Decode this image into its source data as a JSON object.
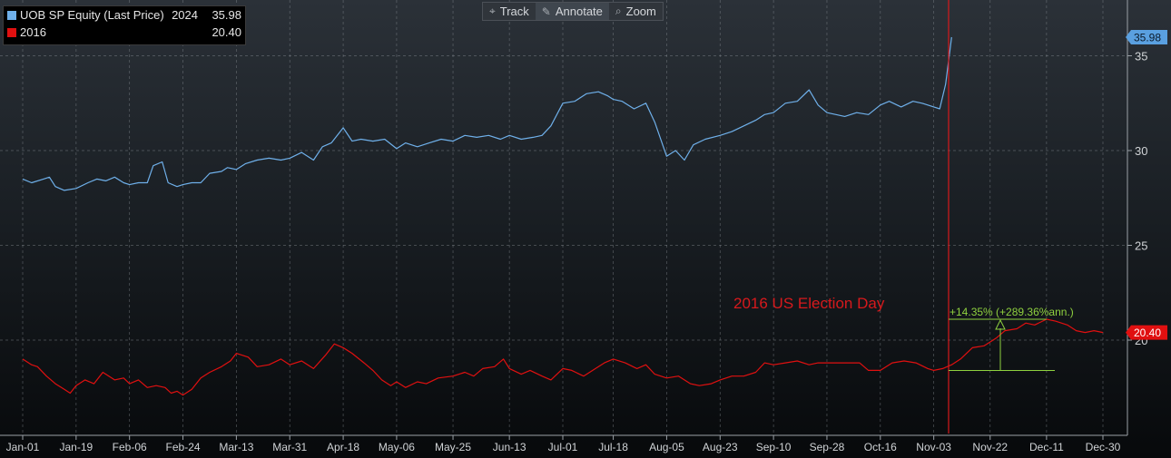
{
  "toolbar": {
    "track_label": "Track",
    "annotate_label": "Annotate",
    "zoom_label": "Zoom",
    "track_icon": "crosshair-icon",
    "annotate_icon": "pencil-icon",
    "zoom_icon": "magnifier-icon"
  },
  "legend": {
    "items": [
      {
        "name": "UOB SP Equity (Last Price)",
        "year": "2024",
        "value": "35.98",
        "color": "#6fb0ea"
      },
      {
        "name": "2016",
        "year": "",
        "value": "20.40",
        "color": "#e01010"
      }
    ]
  },
  "annotations": {
    "election_label": "2016 US Election Day",
    "change_label": "+14.35% (+289.36%ann.)",
    "election_color": "#d7191c",
    "measure_color": "#8fd13f"
  },
  "chart_data": {
    "type": "line",
    "title": "",
    "xlabel": "",
    "ylabel": "",
    "x_ticks": [
      "Jan-01",
      "Jan-19",
      "Feb-06",
      "Feb-24",
      "Mar-13",
      "Mar-31",
      "Apr-18",
      "May-06",
      "May-25",
      "Jun-13",
      "Jul-01",
      "Jul-18",
      "Aug-05",
      "Aug-23",
      "Sep-10",
      "Sep-28",
      "Oct-16",
      "Nov-03",
      "Nov-22",
      "Dec-11",
      "Dec-30"
    ],
    "y_ticks": [
      20,
      25,
      30,
      35
    ],
    "ylim": [
      15,
      38
    ],
    "grid": true,
    "y_axis_side": "right",
    "last_value_tags": [
      "35.98",
      "20.40"
    ],
    "series": [
      {
        "name": "UOB SP Equity (Last Price) 2024",
        "color": "#6fb0ea",
        "points": [
          [
            "Jan-01",
            28.5
          ],
          [
            "Jan-04",
            28.3
          ],
          [
            "Jan-08",
            28.5
          ],
          [
            "Jan-10",
            28.6
          ],
          [
            "Jan-12",
            28.1
          ],
          [
            "Jan-15",
            27.9
          ],
          [
            "Jan-19",
            28.0
          ],
          [
            "Jan-23",
            28.3
          ],
          [
            "Jan-26",
            28.5
          ],
          [
            "Jan-29",
            28.4
          ],
          [
            "Feb-01",
            28.6
          ],
          [
            "Feb-04",
            28.3
          ],
          [
            "Feb-06",
            28.2
          ],
          [
            "Feb-09",
            28.3
          ],
          [
            "Feb-12",
            28.3
          ],
          [
            "Feb-14",
            29.2
          ],
          [
            "Feb-17",
            29.4
          ],
          [
            "Feb-19",
            28.3
          ],
          [
            "Feb-22",
            28.1
          ],
          [
            "Feb-24",
            28.2
          ],
          [
            "Feb-27",
            28.3
          ],
          [
            "Mar-01",
            28.3
          ],
          [
            "Mar-04",
            28.8
          ],
          [
            "Mar-08",
            28.9
          ],
          [
            "Mar-10",
            29.1
          ],
          [
            "Mar-13",
            29.0
          ],
          [
            "Mar-16",
            29.3
          ],
          [
            "Mar-20",
            29.5
          ],
          [
            "Mar-24",
            29.6
          ],
          [
            "Mar-28",
            29.5
          ],
          [
            "Mar-31",
            29.6
          ],
          [
            "Apr-04",
            29.9
          ],
          [
            "Apr-08",
            29.5
          ],
          [
            "Apr-11",
            30.2
          ],
          [
            "Apr-14",
            30.4
          ],
          [
            "Apr-18",
            31.2
          ],
          [
            "Apr-21",
            30.5
          ],
          [
            "Apr-24",
            30.6
          ],
          [
            "Apr-28",
            30.5
          ],
          [
            "May-02",
            30.6
          ],
          [
            "May-06",
            30.1
          ],
          [
            "May-09",
            30.4
          ],
          [
            "May-13",
            30.2
          ],
          [
            "May-17",
            30.4
          ],
          [
            "May-21",
            30.6
          ],
          [
            "May-25",
            30.5
          ],
          [
            "May-29",
            30.8
          ],
          [
            "Jun-02",
            30.7
          ],
          [
            "Jun-06",
            30.8
          ],
          [
            "Jun-10",
            30.6
          ],
          [
            "Jun-13",
            30.8
          ],
          [
            "Jun-17",
            30.6
          ],
          [
            "Jun-21",
            30.7
          ],
          [
            "Jun-24",
            30.8
          ],
          [
            "Jun-27",
            31.3
          ],
          [
            "Jul-01",
            32.5
          ],
          [
            "Jul-05",
            32.6
          ],
          [
            "Jul-09",
            33.0
          ],
          [
            "Jul-13",
            33.1
          ],
          [
            "Jul-16",
            32.9
          ],
          [
            "Jul-18",
            32.7
          ],
          [
            "Jul-21",
            32.6
          ],
          [
            "Jul-25",
            32.2
          ],
          [
            "Jul-29",
            32.5
          ],
          [
            "Aug-01",
            31.5
          ],
          [
            "Aug-05",
            29.7
          ],
          [
            "Aug-08",
            30.0
          ],
          [
            "Aug-11",
            29.5
          ],
          [
            "Aug-14",
            30.3
          ],
          [
            "Aug-18",
            30.6
          ],
          [
            "Aug-23",
            30.8
          ],
          [
            "Aug-27",
            31.0
          ],
          [
            "Aug-31",
            31.3
          ],
          [
            "Sep-04",
            31.6
          ],
          [
            "Sep-07",
            31.9
          ],
          [
            "Sep-10",
            32.0
          ],
          [
            "Sep-14",
            32.5
          ],
          [
            "Sep-18",
            32.6
          ],
          [
            "Sep-22",
            33.2
          ],
          [
            "Sep-25",
            32.4
          ],
          [
            "Sep-28",
            32.0
          ],
          [
            "Oct-01",
            31.9
          ],
          [
            "Oct-04",
            31.8
          ],
          [
            "Oct-08",
            32.0
          ],
          [
            "Oct-12",
            31.9
          ],
          [
            "Oct-16",
            32.4
          ],
          [
            "Oct-19",
            32.6
          ],
          [
            "Oct-23",
            32.3
          ],
          [
            "Oct-27",
            32.6
          ],
          [
            "Oct-30",
            32.5
          ],
          [
            "Nov-03",
            32.3
          ],
          [
            "Nov-05",
            32.2
          ],
          [
            "Nov-07",
            33.5
          ],
          [
            "Nov-09",
            35.98
          ]
        ]
      },
      {
        "name": "2016",
        "color": "#e01010",
        "points": [
          [
            "Jan-01",
            19.0
          ],
          [
            "Jan-04",
            18.7
          ],
          [
            "Jan-06",
            18.6
          ],
          [
            "Jan-09",
            18.1
          ],
          [
            "Jan-12",
            17.7
          ],
          [
            "Jan-15",
            17.4
          ],
          [
            "Jan-17",
            17.2
          ],
          [
            "Jan-19",
            17.6
          ],
          [
            "Jan-22",
            17.9
          ],
          [
            "Jan-25",
            17.7
          ],
          [
            "Jan-28",
            18.3
          ],
          [
            "Feb-01",
            17.9
          ],
          [
            "Feb-04",
            18.0
          ],
          [
            "Feb-06",
            17.7
          ],
          [
            "Feb-09",
            17.9
          ],
          [
            "Feb-12",
            17.5
          ],
          [
            "Feb-15",
            17.6
          ],
          [
            "Feb-18",
            17.5
          ],
          [
            "Feb-20",
            17.2
          ],
          [
            "Feb-22",
            17.3
          ],
          [
            "Feb-24",
            17.1
          ],
          [
            "Feb-27",
            17.4
          ],
          [
            "Mar-01",
            18.0
          ],
          [
            "Mar-04",
            18.3
          ],
          [
            "Mar-08",
            18.6
          ],
          [
            "Mar-11",
            18.9
          ],
          [
            "Mar-13",
            19.3
          ],
          [
            "Mar-17",
            19.1
          ],
          [
            "Mar-20",
            18.6
          ],
          [
            "Mar-24",
            18.7
          ],
          [
            "Mar-28",
            19.0
          ],
          [
            "Mar-31",
            18.7
          ],
          [
            "Apr-04",
            18.9
          ],
          [
            "Apr-08",
            18.5
          ],
          [
            "Apr-12",
            19.2
          ],
          [
            "Apr-15",
            19.8
          ],
          [
            "Apr-18",
            19.6
          ],
          [
            "Apr-21",
            19.3
          ],
          [
            "Apr-25",
            18.8
          ],
          [
            "Apr-28",
            18.4
          ],
          [
            "May-01",
            17.9
          ],
          [
            "May-04",
            17.6
          ],
          [
            "May-06",
            17.8
          ],
          [
            "May-09",
            17.5
          ],
          [
            "May-13",
            17.8
          ],
          [
            "May-16",
            17.7
          ],
          [
            "May-20",
            18.0
          ],
          [
            "May-25",
            18.1
          ],
          [
            "May-29",
            18.3
          ],
          [
            "Jun-01",
            18.1
          ],
          [
            "Jun-04",
            18.5
          ],
          [
            "Jun-08",
            18.6
          ],
          [
            "Jun-11",
            19.0
          ],
          [
            "Jun-13",
            18.5
          ],
          [
            "Jun-17",
            18.2
          ],
          [
            "Jun-20",
            18.4
          ],
          [
            "Jun-24",
            18.1
          ],
          [
            "Jun-27",
            17.9
          ],
          [
            "Jul-01",
            18.5
          ],
          [
            "Jul-04",
            18.4
          ],
          [
            "Jul-08",
            18.1
          ],
          [
            "Jul-12",
            18.5
          ],
          [
            "Jul-15",
            18.8
          ],
          [
            "Jul-18",
            19.0
          ],
          [
            "Jul-22",
            18.8
          ],
          [
            "Jul-26",
            18.5
          ],
          [
            "Jul-29",
            18.7
          ],
          [
            "Aug-01",
            18.2
          ],
          [
            "Aug-05",
            18.0
          ],
          [
            "Aug-09",
            18.1
          ],
          [
            "Aug-13",
            17.7
          ],
          [
            "Aug-16",
            17.6
          ],
          [
            "Aug-20",
            17.7
          ],
          [
            "Aug-23",
            17.9
          ],
          [
            "Aug-27",
            18.1
          ],
          [
            "Aug-31",
            18.1
          ],
          [
            "Sep-04",
            18.3
          ],
          [
            "Sep-07",
            18.8
          ],
          [
            "Sep-10",
            18.7
          ],
          [
            "Sep-14",
            18.8
          ],
          [
            "Sep-18",
            18.9
          ],
          [
            "Sep-22",
            18.7
          ],
          [
            "Sep-25",
            18.8
          ],
          [
            "Sep-28",
            18.8
          ],
          [
            "Oct-02",
            18.8
          ],
          [
            "Oct-06",
            18.8
          ],
          [
            "Oct-09",
            18.8
          ],
          [
            "Oct-12",
            18.4
          ],
          [
            "Oct-16",
            18.4
          ],
          [
            "Oct-20",
            18.8
          ],
          [
            "Oct-24",
            18.9
          ],
          [
            "Oct-28",
            18.8
          ],
          [
            "Nov-01",
            18.5
          ],
          [
            "Nov-03",
            18.4
          ],
          [
            "Nov-06",
            18.5
          ],
          [
            "Nov-09",
            18.7
          ],
          [
            "Nov-12",
            19.0
          ],
          [
            "Nov-16",
            19.6
          ],
          [
            "Nov-20",
            19.7
          ],
          [
            "Nov-24",
            20.1
          ],
          [
            "Nov-27",
            20.5
          ],
          [
            "Dec-01",
            20.6
          ],
          [
            "Dec-04",
            20.9
          ],
          [
            "Dec-07",
            20.8
          ],
          [
            "Dec-11",
            21.1
          ],
          [
            "Dec-14",
            21.0
          ],
          [
            "Dec-18",
            20.8
          ],
          [
            "Dec-21",
            20.5
          ],
          [
            "Dec-24",
            20.4
          ],
          [
            "Dec-27",
            20.5
          ],
          [
            "Dec-30",
            20.4
          ]
        ]
      }
    ],
    "election_day": "Nov-08",
    "measure": {
      "start": [
        "Nov-08",
        18.4
      ],
      "end": [
        "Dec-11",
        21.1
      ],
      "label": "+14.35% (+289.36%ann.)"
    }
  }
}
